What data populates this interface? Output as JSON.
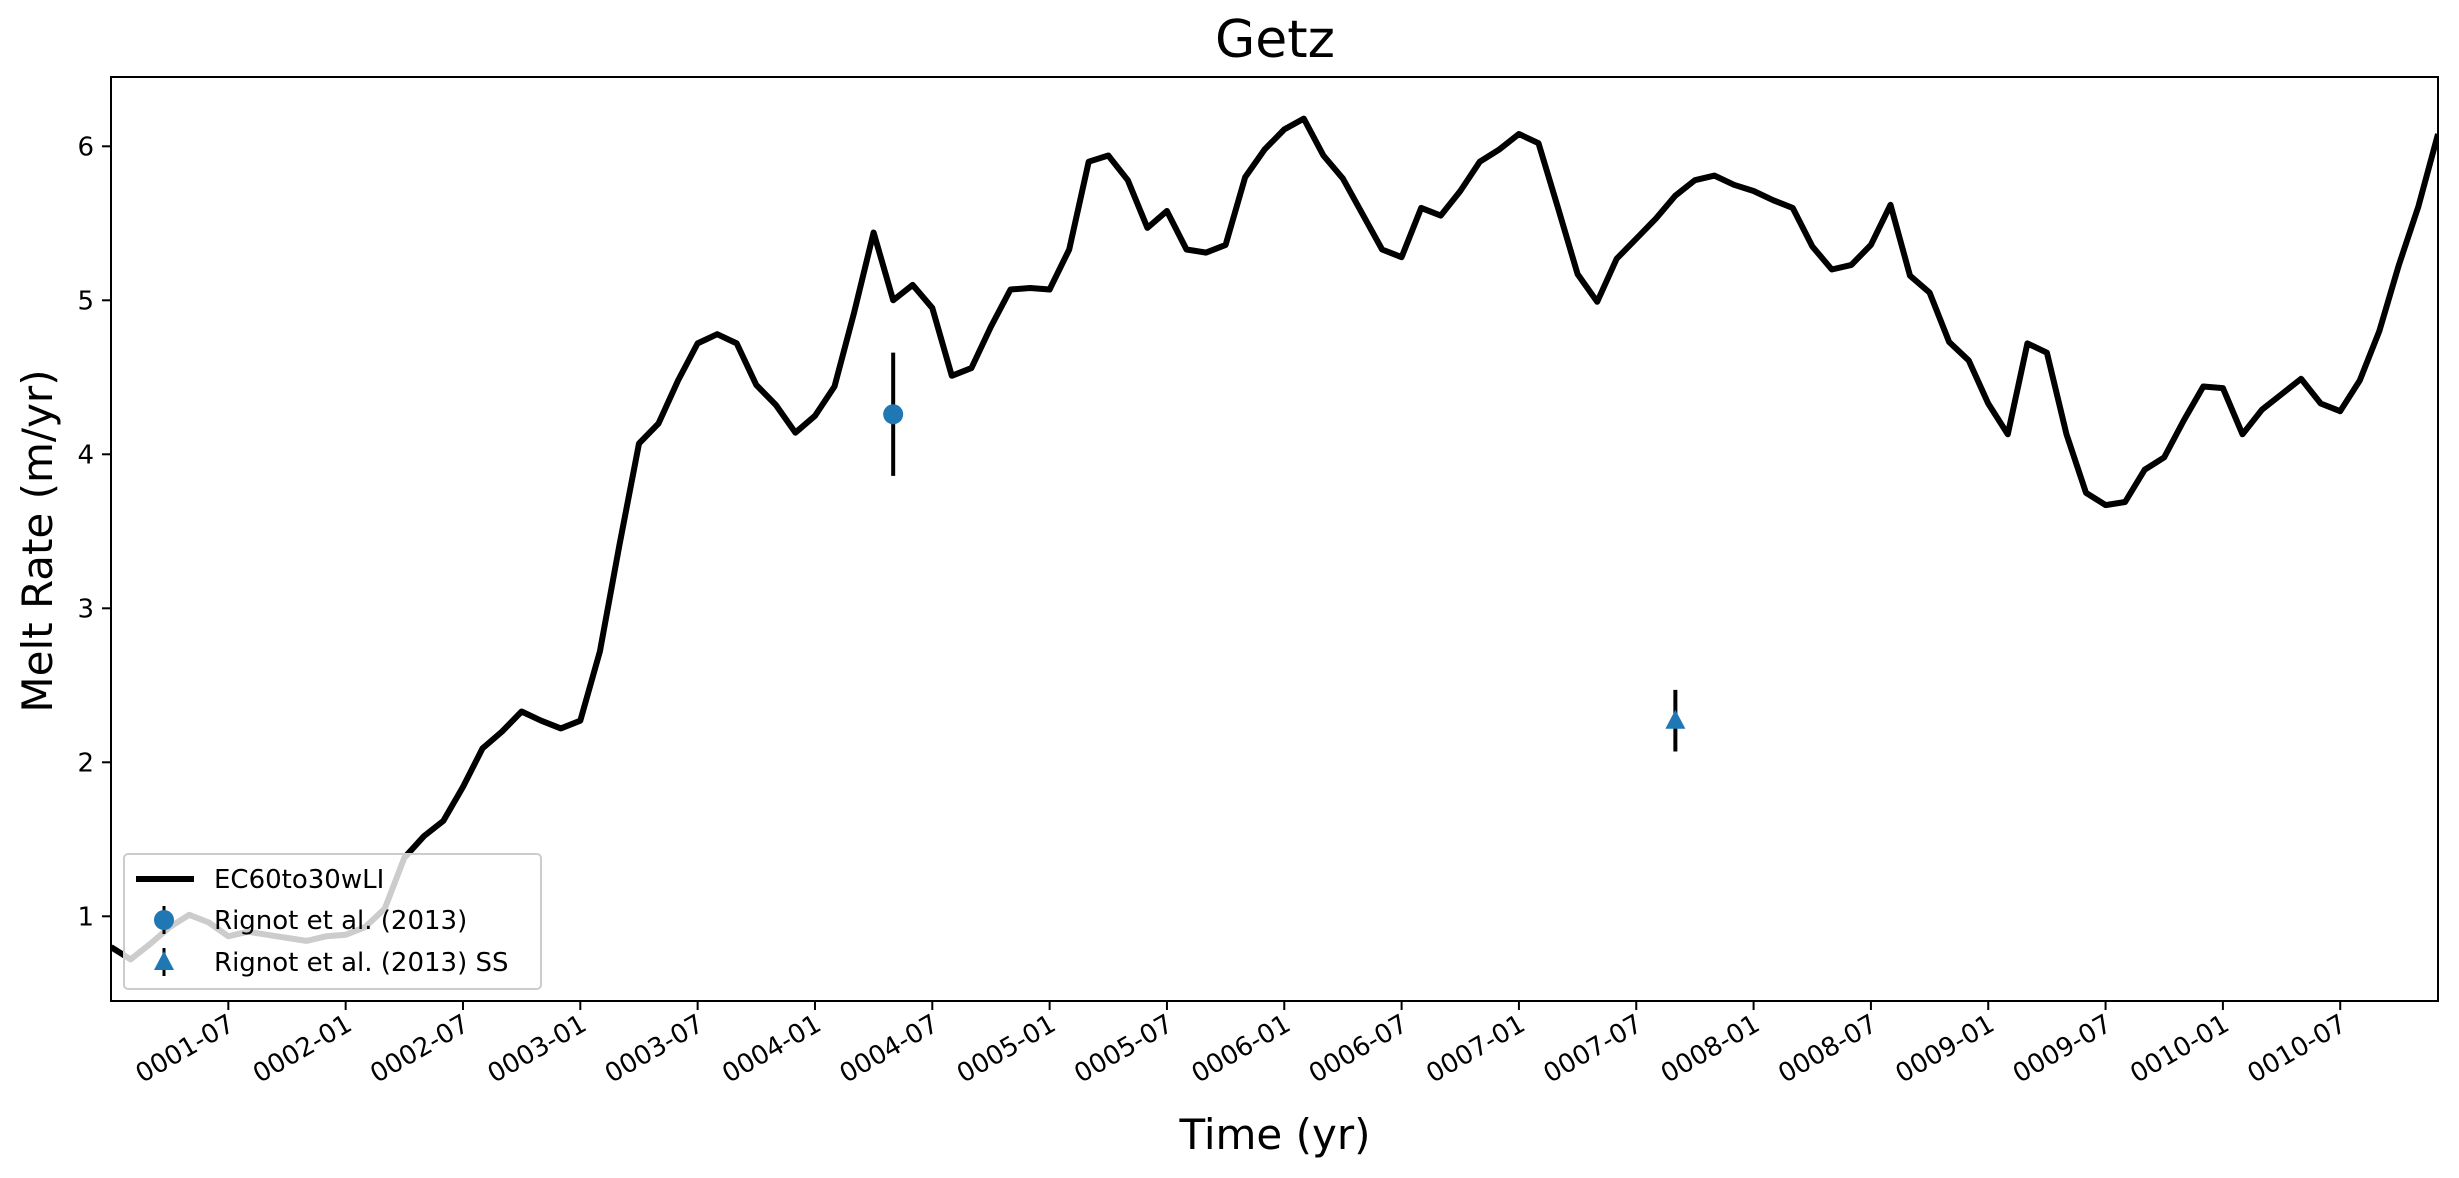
{
  "chart_data": {
    "type": "line",
    "title": "Getz",
    "xlabel": "Time (yr)",
    "ylabel": "Melt Rate (m/yr)",
    "x_time": {
      "start": "0001-01",
      "end": "0010-12",
      "tick_labels": [
        "0001-07",
        "0002-01",
        "0002-07",
        "0003-01",
        "0003-07",
        "0004-01",
        "0004-07",
        "0005-01",
        "0005-07",
        "0006-01",
        "0006-07",
        "0007-01",
        "0007-07",
        "0008-01",
        "0008-07",
        "0009-01",
        "0009-07",
        "0010-01",
        "0010-07"
      ]
    },
    "ylim": [
      0.45,
      6.45
    ],
    "yticks": [
      1,
      2,
      3,
      4,
      5,
      6
    ],
    "grid": false,
    "legend_position": "lower-left",
    "series": [
      {
        "name": "EC60to30wLI",
        "kind": "line",
        "color": "#000000",
        "x": [
          "0001-01",
          "0001-02",
          "0001-03",
          "0001-04",
          "0001-05",
          "0001-06",
          "0001-07",
          "0001-08",
          "0001-09",
          "0001-10",
          "0001-11",
          "0001-12",
          "0002-01",
          "0002-02",
          "0002-03",
          "0002-04",
          "0002-05",
          "0002-06",
          "0002-07",
          "0002-08",
          "0002-09",
          "0002-10",
          "0002-11",
          "0002-12",
          "0003-01",
          "0003-02",
          "0003-03",
          "0003-04",
          "0003-05",
          "0003-06",
          "0003-07",
          "0003-08",
          "0003-09",
          "0003-10",
          "0003-11",
          "0003-12",
          "0004-01",
          "0004-02",
          "0004-03",
          "0004-04",
          "0004-05",
          "0004-06",
          "0004-07",
          "0004-08",
          "0004-09",
          "0004-10",
          "0004-11",
          "0004-12",
          "0005-01",
          "0005-02",
          "0005-03",
          "0005-04",
          "0005-05",
          "0005-06",
          "0005-07",
          "0005-08",
          "0005-09",
          "0005-10",
          "0005-11",
          "0005-12",
          "0006-01",
          "0006-02",
          "0006-03",
          "0006-04",
          "0006-05",
          "0006-06",
          "0006-07",
          "0006-08",
          "0006-09",
          "0006-10",
          "0006-11",
          "0006-12",
          "0007-01",
          "0007-02",
          "0007-03",
          "0007-04",
          "0007-05",
          "0007-06",
          "0007-07",
          "0007-08",
          "0007-09",
          "0007-10",
          "0007-11",
          "0007-12",
          "0008-01",
          "0008-02",
          "0008-03",
          "0008-04",
          "0008-05",
          "0008-06",
          "0008-07",
          "0008-08",
          "0008-09",
          "0008-10",
          "0008-11",
          "0008-12",
          "0009-01",
          "0009-02",
          "0009-03",
          "0009-04",
          "0009-05",
          "0009-06",
          "0009-07",
          "0009-08",
          "0009-09",
          "0009-10",
          "0009-11",
          "0009-12",
          "0010-01",
          "0010-02",
          "0010-03",
          "0010-04",
          "0010-05",
          "0010-06",
          "0010-07",
          "0010-08",
          "0010-09",
          "0010-10",
          "0010-11",
          "0010-12"
        ],
        "values": [
          0.8,
          0.72,
          0.82,
          0.93,
          1.01,
          0.96,
          0.87,
          0.9,
          0.88,
          0.86,
          0.84,
          0.87,
          0.88,
          0.93,
          1.05,
          1.38,
          1.52,
          1.62,
          1.84,
          2.09,
          2.2,
          2.33,
          2.27,
          2.22,
          2.27,
          2.72,
          3.41,
          4.07,
          4.2,
          4.48,
          4.72,
          4.78,
          4.72,
          4.45,
          4.32,
          4.14,
          4.25,
          4.44,
          4.92,
          5.44,
          5.0,
          5.1,
          4.95,
          4.51,
          4.56,
          4.83,
          5.07,
          5.08,
          5.07,
          5.33,
          5.9,
          5.94,
          5.78,
          5.47,
          5.58,
          5.33,
          5.31,
          5.36,
          5.8,
          5.98,
          6.11,
          6.18,
          5.94,
          5.79,
          5.56,
          5.33,
          5.28,
          5.6,
          5.55,
          5.71,
          5.9,
          5.98,
          6.08,
          6.02,
          5.6,
          5.17,
          4.99,
          5.27,
          5.4,
          5.53,
          5.68,
          5.78,
          5.81,
          5.75,
          5.71,
          5.65,
          5.6,
          5.35,
          5.2,
          5.23,
          5.36,
          5.62,
          5.16,
          5.05,
          4.73,
          4.61,
          4.33,
          4.13,
          4.72,
          4.66,
          4.13,
          3.75,
          3.67,
          3.69,
          3.9,
          3.98,
          4.22,
          4.44,
          4.43,
          4.13,
          4.29,
          4.39,
          4.49,
          4.33,
          4.28,
          4.48,
          4.8,
          5.23,
          5.61,
          6.08
        ]
      },
      {
        "name": "Rignot et al. (2013)",
        "kind": "errorbar",
        "marker": "circle",
        "color": "#1f77b4",
        "x": [
          "0004-05"
        ],
        "values": [
          4.26
        ],
        "error": [
          0.4
        ]
      },
      {
        "name": "Rignot et al. (2013) SS",
        "kind": "errorbar",
        "marker": "triangle",
        "color": "#1f77b4",
        "x": [
          "0007-09"
        ],
        "values": [
          2.27
        ],
        "error": [
          0.2
        ]
      }
    ]
  }
}
